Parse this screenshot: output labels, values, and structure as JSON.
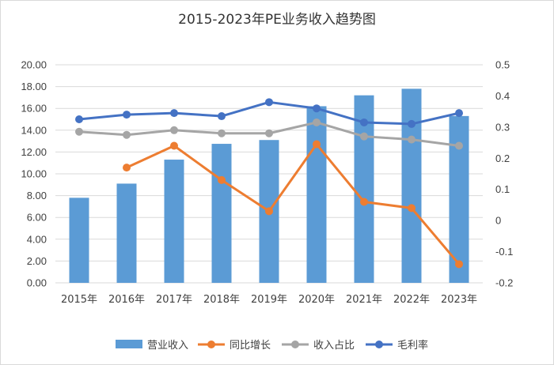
{
  "chart_data": {
    "type": "bar+line",
    "title": "2015-2023年PE业务收入趋势图",
    "categories": [
      "2015年",
      "2016年",
      "2017年",
      "2018年",
      "2019年",
      "2020年",
      "2021年",
      "2022年",
      "2023年"
    ],
    "left_axis": {
      "min": 0,
      "max": 20,
      "step": 2,
      "tick_labels": [
        "0.00",
        "2.00",
        "4.00",
        "6.00",
        "8.00",
        "10.00",
        "12.00",
        "14.00",
        "16.00",
        "18.00",
        "20.00"
      ]
    },
    "right_axis": {
      "min": -0.2,
      "max": 0.5,
      "step": 0.1,
      "tick_labels": [
        "-0.2",
        "-0.1",
        "0",
        "0.1",
        "0.2",
        "0.3",
        "0.4",
        "0.5"
      ]
    },
    "series": [
      {
        "name": "营业收入",
        "type": "bar",
        "axis": "left",
        "color": "#5b9bd5",
        "values": [
          7.8,
          9.1,
          11.3,
          12.75,
          13.1,
          16.2,
          17.2,
          17.8,
          15.3
        ]
      },
      {
        "name": "同比增长",
        "type": "line",
        "axis": "right",
        "color": "#ed7d31",
        "values": [
          null,
          0.17,
          0.24,
          0.13,
          0.03,
          0.245,
          0.06,
          0.04,
          -0.14
        ]
      },
      {
        "name": "收入占比",
        "type": "line",
        "axis": "right",
        "color": "#a5a5a5",
        "values": [
          0.285,
          0.275,
          0.29,
          0.28,
          0.28,
          0.315,
          0.27,
          0.26,
          0.24
        ]
      },
      {
        "name": "毛利率",
        "type": "line",
        "axis": "right",
        "color": "#4472c4",
        "values": [
          0.325,
          0.34,
          0.345,
          0.335,
          0.38,
          0.36,
          0.315,
          0.31,
          0.345
        ]
      }
    ],
    "grid": true,
    "legend_position": "bottom"
  }
}
